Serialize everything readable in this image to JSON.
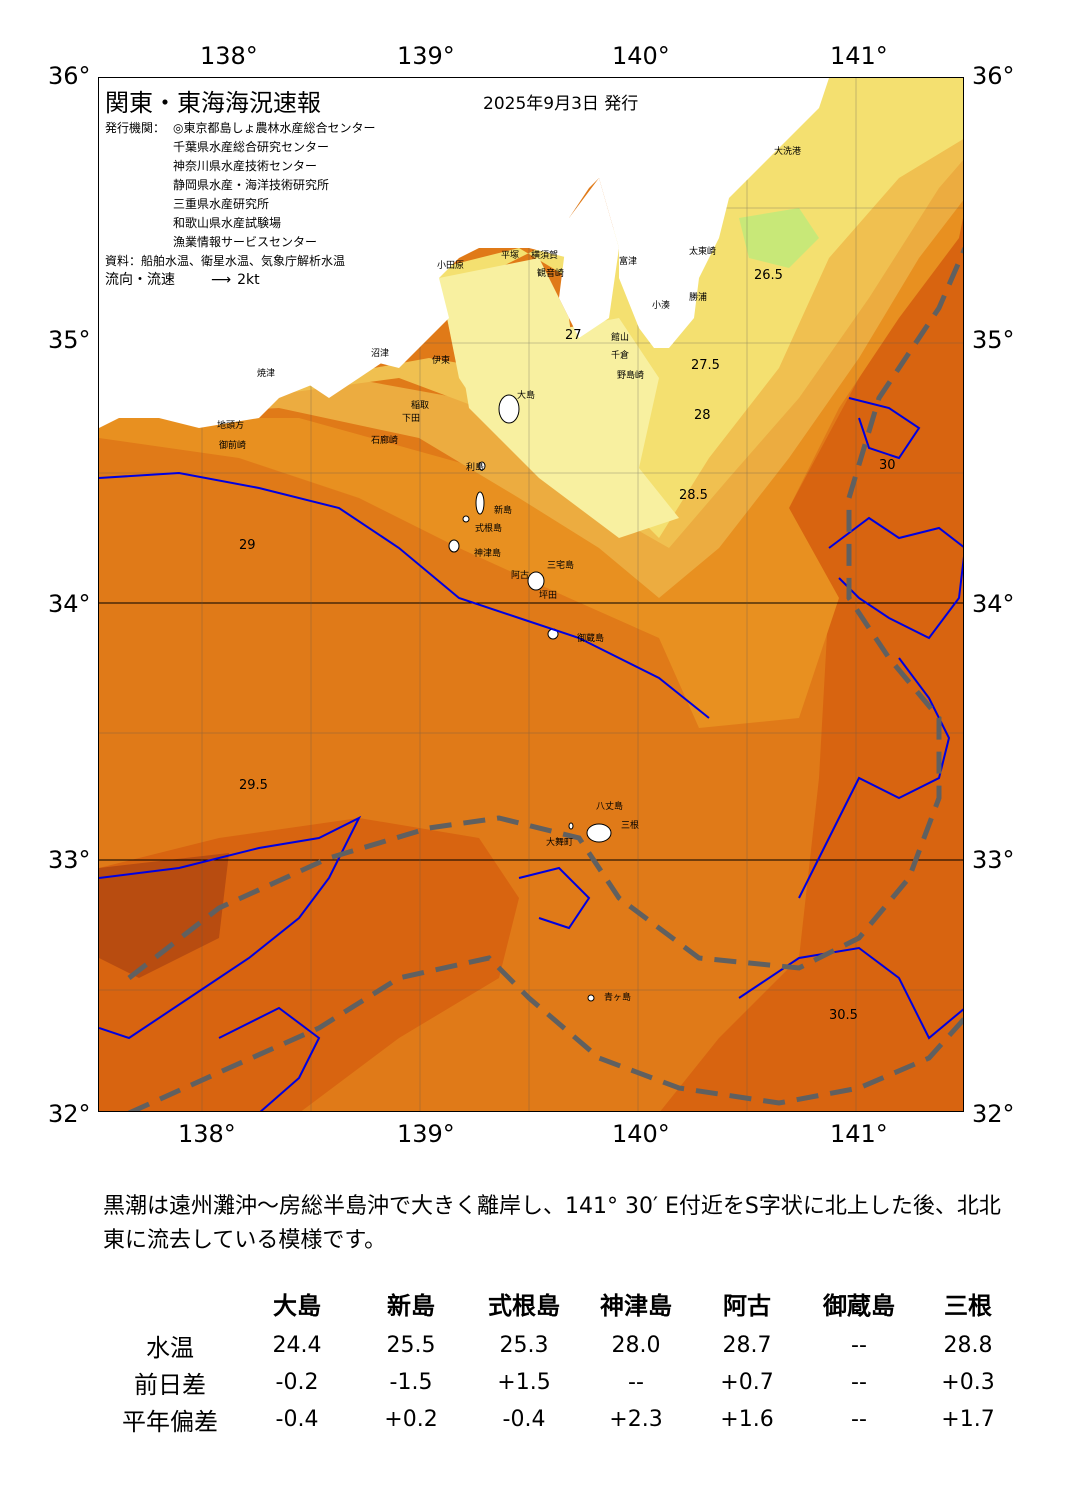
{
  "map": {
    "title": "関東・東海海況速報",
    "issue_date": "2025年9月3日 発行",
    "agencies_label": "発行機関：",
    "agencies": [
      "◎東京都島しょ農林水産総合センター",
      "千葉県水産総合研究センター",
      "神奈川県水産技術センター",
      "静岡県水産・海洋技術研究所",
      "三重県水産研究所",
      "和歌山県水産試験場",
      "漁業情報サービスセンター"
    ],
    "source": "資料：船舶水温、衛星水温、気象庁解析水温",
    "flow_label": "流向・流速",
    "flow_scale": "2kt",
    "lon_labels": [
      "138°",
      "139°",
      "140°",
      "141°"
    ],
    "lat_labels": [
      "36°",
      "35°",
      "34°",
      "33°",
      "32°"
    ],
    "contour_labels": [
      "26.5",
      "27",
      "27.5",
      "28",
      "28.5",
      "29",
      "29.5",
      "30",
      "30.5"
    ],
    "place_names": [
      "大洗港",
      "太東崎",
      "小湊",
      "勝浦",
      "館山",
      "千倉",
      "野島崎",
      "平塚",
      "横須賀",
      "観音崎",
      "富津",
      "小田原",
      "沼津",
      "伊東",
      "稲取",
      "下田",
      "石廊崎",
      "焼津",
      "御前崎",
      "地頭方",
      "大島",
      "利島",
      "新島",
      "式根島",
      "神津島",
      "三宅島",
      "御蔵島",
      "八丈島",
      "三根",
      "大舞町",
      "青ヶ島",
      "坪田",
      "阿古"
    ],
    "colors": {
      "t_26_5": "#c8e878",
      "t_27": "#f8f0a0",
      "t_27_5": "#f4e070",
      "t_28": "#f0c050",
      "t_28_5": "#ecac40",
      "t_29": "#e89020",
      "t_29_5": "#e07a18",
      "t_30": "#d86410",
      "t_30_5": "#b84c10",
      "contour": "#0000e0",
      "kuroshio_axis": "#606060",
      "land": "#ffffff"
    }
  },
  "summary": "黒潮は遠州灘沖～房総半島沖で大きく離岸し、141° 30′ E付近をS字状に北上した後、北北東に流去している模様です。",
  "table": {
    "columns": [
      "大島",
      "新島",
      "式根島",
      "神津島",
      "阿古",
      "御蔵島",
      "三根"
    ],
    "rows": [
      {
        "label": "水温",
        "values": [
          "24.4",
          "25.5",
          "25.3",
          "28.0",
          "28.7",
          "--",
          "28.8"
        ]
      },
      {
        "label": "前日差",
        "values": [
          "-0.2",
          "-1.5",
          "+1.5",
          "--",
          "+0.7",
          "--",
          "+0.3"
        ]
      },
      {
        "label": "平年偏差",
        "values": [
          "-0.4",
          "+0.2",
          "-0.4",
          "+2.3",
          "+1.6",
          "--",
          "+1.7"
        ]
      }
    ]
  }
}
